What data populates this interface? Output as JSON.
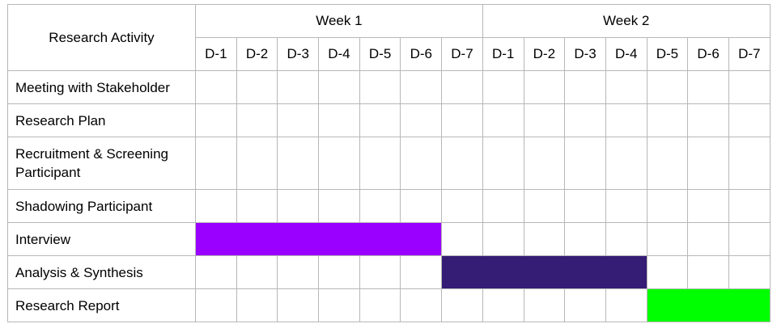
{
  "chart_data": {
    "type": "table",
    "row_header": "Research Activity",
    "weeks": [
      {
        "label": "Week 1",
        "days": [
          "D-1",
          "D-2",
          "D-3",
          "D-4",
          "D-5",
          "D-6",
          "D-7"
        ]
      },
      {
        "label": "Week 2",
        "days": [
          "D-1",
          "D-2",
          "D-3",
          "D-4",
          "D-5",
          "D-6",
          "D-7"
        ]
      }
    ],
    "activities": [
      {
        "name": "Meeting with Stakeholder",
        "start": null,
        "end": null,
        "color": null
      },
      {
        "name": "Research Plan",
        "start": null,
        "end": null,
        "color": null
      },
      {
        "name": "Recruitment & Screening Participant",
        "start": null,
        "end": null,
        "color": null
      },
      {
        "name": "Shadowing Participant",
        "start": null,
        "end": null,
        "color": null
      },
      {
        "name": "Interview",
        "start": 1,
        "end": 6,
        "color": "#9900ff"
      },
      {
        "name": "Analysis & Synthesis",
        "start": 7,
        "end": 11,
        "color": "#351c75"
      },
      {
        "name": "Research Report",
        "start": 12,
        "end": 14,
        "color": "#00ff00"
      }
    ]
  }
}
